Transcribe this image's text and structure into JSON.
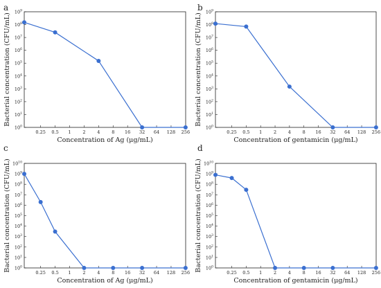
{
  "chart_data": [
    {
      "type": "line",
      "panel": "a",
      "xlabel": "Concentration of Ag (μg/mL)",
      "ylabel": "Bacterial concentration (CFU/mL)",
      "x_ticks": [
        "0.25",
        "0.5",
        "1",
        "2",
        "4",
        "8",
        "16",
        "32",
        "64",
        "128",
        "256"
      ],
      "y_ticks": [
        "10^0",
        "10^1",
        "10^2",
        "10^3",
        "10^4",
        "10^5",
        "10^6",
        "10^7",
        "10^8",
        "10^9"
      ],
      "yscale": "log",
      "ylim": [
        1,
        1000000000
      ],
      "x": [
        "0",
        "0.5",
        "4",
        "32",
        "256"
      ],
      "values": [
        150000000,
        25000000,
        150000,
        1,
        1
      ],
      "color": "#3a6fd0"
    },
    {
      "type": "line",
      "panel": "b",
      "xlabel": "Concentration of gentamicin (μg/mL)",
      "ylabel": "Bacterial concentration (CFU/mL)",
      "x_ticks": [
        "0.25",
        "0.5",
        "1",
        "2",
        "4",
        "8",
        "16",
        "32",
        "64",
        "128",
        "256"
      ],
      "y_ticks": [
        "10^0",
        "10^1",
        "10^2",
        "10^3",
        "10^4",
        "10^5",
        "10^6",
        "10^7",
        "10^8",
        "10^9"
      ],
      "yscale": "log",
      "ylim": [
        1,
        1000000000
      ],
      "x": [
        "0",
        "0.5",
        "4",
        "32",
        "256"
      ],
      "values": [
        120000000,
        70000000,
        1500,
        1,
        1
      ],
      "color": "#3a6fd0"
    },
    {
      "type": "line",
      "panel": "c",
      "xlabel": "Concentration of Ag (μg/mL)",
      "ylabel": "Bacterial concentration (CFU/mL)",
      "x_ticks": [
        "0.25",
        "0.5",
        "1",
        "2",
        "4",
        "8",
        "16",
        "32",
        "64",
        "128",
        "256"
      ],
      "y_ticks": [
        "10^0",
        "10^1",
        "10^2",
        "10^3",
        "10^4",
        "10^5",
        "10^6",
        "10^7",
        "10^8",
        "10^9",
        "10^10"
      ],
      "yscale": "log",
      "ylim": [
        1,
        10000000000
      ],
      "x": [
        "0",
        "0.25",
        "0.5",
        "2",
        "8",
        "32",
        "256"
      ],
      "values": [
        1000000000,
        2000000,
        3000,
        1,
        1,
        1,
        1
      ],
      "color": "#3a6fd0"
    },
    {
      "type": "line",
      "panel": "d",
      "xlabel": "Concentration of gentamicin (μg/mL)",
      "ylabel": "Bacterial concentration (CFU/mL)",
      "x_ticks": [
        "0.25",
        "0.5",
        "1",
        "2",
        "4",
        "8",
        "16",
        "32",
        "64",
        "128",
        "256"
      ],
      "y_ticks": [
        "10^0",
        "10^1",
        "10^2",
        "10^3",
        "10^4",
        "10^5",
        "10^6",
        "10^7",
        "10^8",
        "10^9",
        "10^10"
      ],
      "yscale": "log",
      "ylim": [
        1,
        10000000000
      ],
      "x": [
        "0",
        "0.25",
        "0.5",
        "2",
        "8",
        "32",
        "256"
      ],
      "values": [
        800000000,
        400000000,
        30000000,
        1,
        1,
        1,
        1
      ],
      "color": "#3a6fd0"
    }
  ]
}
